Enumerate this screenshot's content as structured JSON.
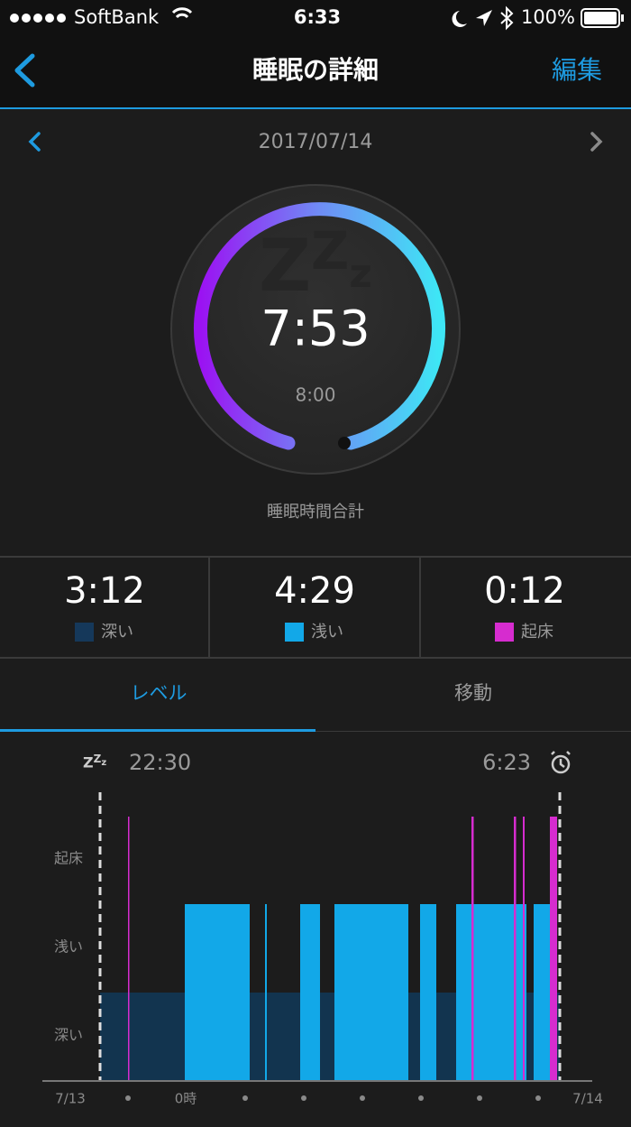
{
  "status_bar": {
    "carrier": "SoftBank",
    "time": "6:33",
    "battery": "100%"
  },
  "nav": {
    "title": "睡眠の詳細",
    "edit": "編集"
  },
  "date": "2017/07/14",
  "ring": {
    "total": "7:53",
    "goal": "8:00",
    "label": "睡眠時間合計"
  },
  "stages": [
    {
      "time": "3:12",
      "label": "深い"
    },
    {
      "time": "4:29",
      "label": "浅い"
    },
    {
      "time": "0:12",
      "label": "起床"
    }
  ],
  "tabs": [
    "レベル",
    "移動"
  ],
  "timeline": {
    "start": "22:30",
    "end": "6:23",
    "y_labels": [
      "起床",
      "浅い",
      "深い"
    ],
    "x_labels": [
      "7/13",
      "0時",
      "7/14"
    ]
  }
}
